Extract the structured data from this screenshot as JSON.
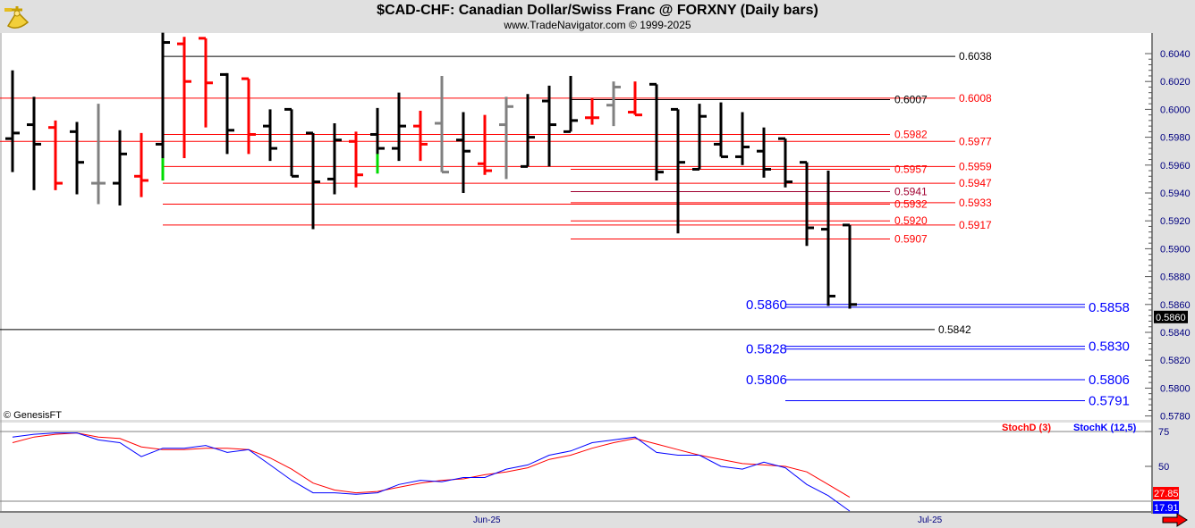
{
  "header": {
    "title": "$CAD-CHF:  Canadian Dollar/Swiss Franc @ FORXNY  (Daily bars)",
    "subtitle": "www.TradeNavigator.com © 1999-2025",
    "logo_icon": "sextant-icon"
  },
  "copyright": "© GenesisFT",
  "colors": {
    "up": "#000000",
    "down": "#ff0000",
    "neutral": "#808080",
    "signal": "#00dd00",
    "stochD": "#ff0000",
    "stochK": "#0000ff",
    "level_blue": "#0000ff"
  },
  "chart_data": [
    {
      "type": "ohlc",
      "title": "$CAD-CHF:  Canadian Dollar/Swiss Franc @ FORXNY  (Daily bars)",
      "ylim": [
        0.5772,
        0.6052
      ],
      "yticks": [
        "0.6040",
        "0.6020",
        "0.6000",
        "0.5980",
        "0.5960",
        "0.5940",
        "0.5920",
        "0.5900",
        "0.5880",
        "0.5860",
        "0.5840",
        "0.5820",
        "0.5800",
        "0.5780"
      ],
      "xticks": [
        "Jun-25",
        "Jul-25"
      ],
      "last_price": "0.5860",
      "bars": [
        {
          "o": 0.5979,
          "h": 0.6028,
          "l": 0.5955,
          "c": 0.5983,
          "color": "black"
        },
        {
          "o": 0.5989,
          "h": 0.6009,
          "l": 0.5942,
          "c": 0.5975,
          "color": "black"
        },
        {
          "o": 0.5987,
          "h": 0.5992,
          "l": 0.5942,
          "c": 0.5947,
          "color": "red"
        },
        {
          "o": 0.5984,
          "h": 0.5991,
          "l": 0.5939,
          "c": 0.5962,
          "color": "black"
        },
        {
          "o": 0.5947,
          "h": 0.6004,
          "l": 0.5932,
          "c": 0.5947,
          "color": "gray"
        },
        {
          "o": 0.5947,
          "h": 0.5985,
          "l": 0.5931,
          "c": 0.5968,
          "color": "black"
        },
        {
          "o": 0.5952,
          "h": 0.5983,
          "l": 0.5937,
          "c": 0.5949,
          "color": "red"
        },
        {
          "o": 0.5975,
          "h": 0.6055,
          "l": 0.5949,
          "c": 0.6048,
          "color": "black",
          "green_low": 0.5965
        },
        {
          "o": 0.6047,
          "h": 0.6052,
          "l": 0.5965,
          "c": 0.602,
          "color": "red"
        },
        {
          "o": 0.6051,
          "h": 0.6051,
          "l": 0.5987,
          "c": 0.6019,
          "color": "red"
        },
        {
          "o": 0.6025,
          "h": 0.6026,
          "l": 0.5968,
          "c": 0.5985,
          "color": "black"
        },
        {
          "o": 0.6022,
          "h": 0.6022,
          "l": 0.5968,
          "c": 0.5982,
          "color": "red"
        },
        {
          "o": 0.5988,
          "h": 0.6,
          "l": 0.5963,
          "c": 0.5972,
          "color": "black"
        },
        {
          "o": 0.6,
          "h": 0.6,
          "l": 0.5952,
          "c": 0.5952,
          "color": "black"
        },
        {
          "o": 0.5983,
          "h": 0.5983,
          "l": 0.5914,
          "c": 0.5948,
          "color": "black"
        },
        {
          "o": 0.595,
          "h": 0.599,
          "l": 0.5939,
          "c": 0.5978,
          "color": "black"
        },
        {
          "o": 0.5977,
          "h": 0.5984,
          "l": 0.5944,
          "c": 0.5953,
          "color": "red"
        },
        {
          "o": 0.5982,
          "h": 0.6001,
          "l": 0.5954,
          "c": 0.5972,
          "color": "black",
          "green_low": 0.5968
        },
        {
          "o": 0.5972,
          "h": 0.6012,
          "l": 0.5963,
          "c": 0.5988,
          "color": "black"
        },
        {
          "o": 0.5988,
          "h": 0.5999,
          "l": 0.5963,
          "c": 0.5975,
          "color": "red"
        },
        {
          "o": 0.599,
          "h": 0.6024,
          "l": 0.5955,
          "c": 0.5955,
          "color": "gray"
        },
        {
          "o": 0.5978,
          "h": 0.5998,
          "l": 0.594,
          "c": 0.597,
          "color": "black"
        },
        {
          "o": 0.5961,
          "h": 0.5996,
          "l": 0.5953,
          "c": 0.5956,
          "color": "red"
        },
        {
          "o": 0.5989,
          "h": 0.6009,
          "l": 0.595,
          "c": 0.6002,
          "color": "gray"
        },
        {
          "o": 0.5959,
          "h": 0.6011,
          "l": 0.5959,
          "c": 0.598,
          "color": "black"
        },
        {
          "o": 0.6006,
          "h": 0.6017,
          "l": 0.5959,
          "c": 0.5989,
          "color": "black"
        },
        {
          "o": 0.5984,
          "h": 0.6024,
          "l": 0.5984,
          "c": 0.5992,
          "color": "black"
        },
        {
          "o": 0.5994,
          "h": 0.6008,
          "l": 0.5989,
          "c": 0.5994,
          "color": "red"
        },
        {
          "o": 0.6003,
          "h": 0.602,
          "l": 0.5988,
          "c": 0.6016,
          "color": "gray"
        },
        {
          "o": 0.5998,
          "h": 0.602,
          "l": 0.5996,
          "c": 0.5996,
          "color": "red"
        },
        {
          "o": 0.6018,
          "h": 0.6018,
          "l": 0.5949,
          "c": 0.5955,
          "color": "black"
        },
        {
          "o": 0.6,
          "h": 0.6,
          "l": 0.5911,
          "c": 0.5962,
          "color": "black"
        },
        {
          "o": 0.5957,
          "h": 0.6004,
          "l": 0.5957,
          "c": 0.5995,
          "color": "black"
        },
        {
          "o": 0.5975,
          "h": 0.6005,
          "l": 0.5966,
          "c": 0.5966,
          "color": "black"
        },
        {
          "o": 0.5966,
          "h": 0.5998,
          "l": 0.596,
          "c": 0.5973,
          "color": "black"
        },
        {
          "o": 0.597,
          "h": 0.5987,
          "l": 0.5951,
          "c": 0.5957,
          "color": "black"
        },
        {
          "o": 0.5979,
          "h": 0.5979,
          "l": 0.5944,
          "c": 0.5948,
          "color": "black"
        },
        {
          "o": 0.5962,
          "h": 0.5962,
          "l": 0.5902,
          "c": 0.5915,
          "color": "black"
        },
        {
          "o": 0.5914,
          "h": 0.5956,
          "l": 0.5859,
          "c": 0.5866,
          "color": "black"
        },
        {
          "o": 0.5917,
          "h": 0.5917,
          "l": 0.5857,
          "c": 0.586,
          "color": "black"
        }
      ],
      "levels": [
        {
          "value": 0.6038,
          "label": "0.6038",
          "color": "#000000"
        },
        {
          "value": 0.6008,
          "label": "0.6008",
          "color": "#ff0000"
        },
        {
          "value": 0.6007,
          "label": "0.6007",
          "color": "#000000"
        },
        {
          "value": 0.5982,
          "label": "0.5982",
          "color": "#ff0000"
        },
        {
          "value": 0.5977,
          "label": "0.5977",
          "color": "#ff0000"
        },
        {
          "value": 0.5957,
          "label": "0.5957",
          "color": "#ff0000"
        },
        {
          "value": 0.5959,
          "label": "0.5959",
          "color": "#ff0000"
        },
        {
          "value": 0.5947,
          "label": "0.5947",
          "color": "#ff0000"
        },
        {
          "value": 0.5941,
          "label": "0.5941",
          "color": "#a00030"
        },
        {
          "value": 0.5932,
          "label": "0.5932",
          "color": "#ff0000"
        },
        {
          "value": 0.5933,
          "label": "0.5933",
          "color": "#ff0000"
        },
        {
          "value": 0.592,
          "label": "0.5920",
          "color": "#ff0000"
        },
        {
          "value": 0.5917,
          "label": "0.5917",
          "color": "#ff0000"
        },
        {
          "value": 0.5907,
          "label": "0.5907",
          "color": "#ff0000"
        },
        {
          "value": 0.586,
          "label": "0.5860",
          "color": "#0000ff"
        },
        {
          "value": 0.5858,
          "label": "0.5858",
          "color": "#0000ff"
        },
        {
          "value": 0.5842,
          "label": "0.5842",
          "color": "#000000"
        },
        {
          "value": 0.5828,
          "label": "0.5828",
          "color": "#0000ff"
        },
        {
          "value": 0.583,
          "label": "0.5830",
          "color": "#0000ff"
        },
        {
          "value": 0.5806,
          "label": "0.5806",
          "color": "#0000ff"
        },
        {
          "value": 0.5806,
          "label": "0.5806",
          "color": "#0000ff"
        },
        {
          "value": 0.5791,
          "label": "0.5791",
          "color": "#0000ff"
        }
      ]
    },
    {
      "type": "line",
      "ylim": [
        17,
        80
      ],
      "yticks": [
        "75",
        "50"
      ],
      "series": [
        {
          "name": "StochD (3)",
          "color": "#ff0000",
          "last": "27.85",
          "values": [
            67,
            71,
            73,
            74,
            71,
            70,
            64,
            62,
            62,
            63,
            63,
            62,
            56,
            48,
            38,
            33,
            31,
            32,
            35,
            38,
            40,
            41,
            44,
            46,
            49,
            55,
            58,
            63,
            67,
            70,
            66,
            62,
            58,
            55,
            52,
            51,
            50,
            46,
            37,
            27.85
          ]
        },
        {
          "name": "StochK (12,5)",
          "color": "#0000ff",
          "last": "17.91",
          "values": [
            71,
            73,
            74,
            74,
            69,
            67,
            57,
            63,
            63,
            65,
            60,
            62,
            51,
            40,
            31,
            31,
            30,
            31,
            37,
            40,
            39,
            42,
            42,
            48,
            51,
            58,
            61,
            67,
            69,
            71,
            60,
            58,
            58,
            50,
            48,
            53,
            49,
            37,
            29,
            17.91
          ]
        }
      ]
    }
  ]
}
